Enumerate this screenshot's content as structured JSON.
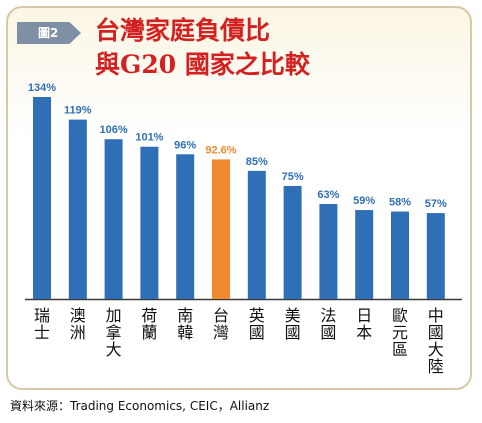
{
  "figure_label": "圖2",
  "title_line1": "台灣家庭負債比",
  "title_line2": "與G20 國家之比較",
  "source": "資料來源：Trading Economics, CEIC，Allianz",
  "colors": {
    "bar": "#2f6fb6",
    "highlight": "#ef8a2e",
    "title": "#d42020",
    "badge": "#7f8fa6"
  },
  "chart_data": {
    "type": "bar",
    "title": "台灣家庭負債比 與G20 國家之比較",
    "categories": [
      "瑞士",
      "澳洲",
      "加拿大",
      "荷蘭",
      "南韓",
      "台灣",
      "英國",
      "美國",
      "法國",
      "日本",
      "歐元區",
      "中國大陸"
    ],
    "values": [
      134,
      119,
      106,
      101,
      96,
      92.6,
      85,
      75,
      63,
      59,
      58,
      57
    ],
    "value_labels": [
      "134%",
      "119%",
      "106%",
      "101%",
      "96%",
      "92.6%",
      "85%",
      "75%",
      "63%",
      "59%",
      "58%",
      "57%"
    ],
    "highlight_category": "台灣",
    "unit": "%",
    "xlabel": "",
    "ylabel": "",
    "ylim": [
      0,
      134
    ],
    "grid": false,
    "legend": "none"
  }
}
